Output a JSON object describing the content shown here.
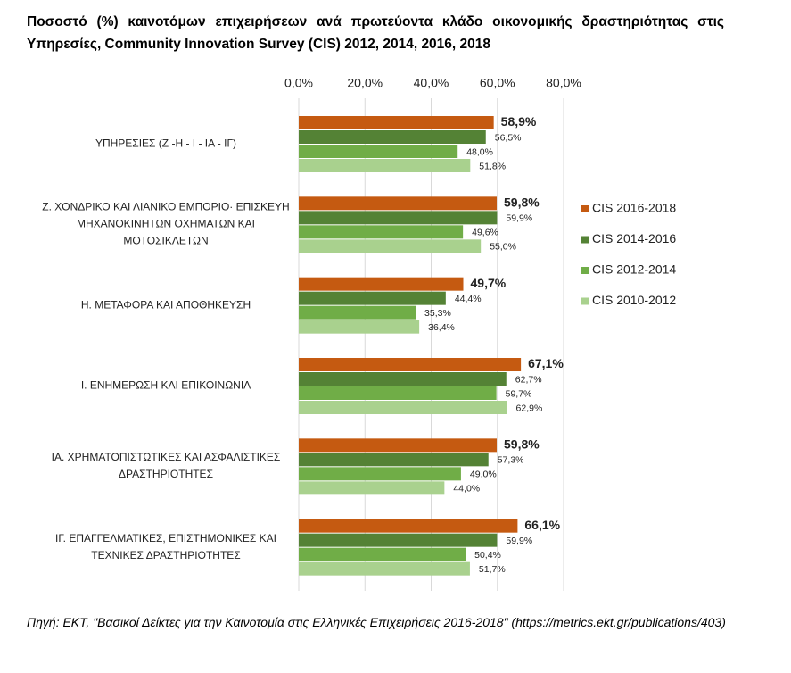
{
  "chart_data": {
    "type": "barh",
    "title": "Ποσοστό (%) καινοτόμων επιχειρήσεων ανά πρωτεύοντα κλάδο οικονομικής δραστηριότητας στις Υπηρεσίες,  Community Innovation Survey (CIS) 2012, 2014, 2016, 2018",
    "categories": [
      "ΥΠΗΡΕΣΙΕΣ (Ζ -Η - Ι - ΙΑ - ΙΓ)",
      "Ζ. ΧΟΝΔΡΙΚΟ ΚΑΙ ΛΙΑΝΙΚΟ ΕΜΠΟΡΙΟ· ΕΠΙΣΚΕΥΗ ΜΗΧΑΝΟΚΙΝΗΤΩΝ ΟΧΗΜΑΤΩΝ ΚΑΙ ΜΟΤΟΣΙΚΛΕΤΩΝ",
      "Η. ΜΕΤΑΦΟΡΑ ΚΑΙ ΑΠΟΘΗΚΕΥΣΗ",
      "Ι. ΕΝΗΜΕΡΩΣΗ ΚΑΙ ΕΠΙΚΟΙΝΩΝΙΑ",
      "ΙΑ. ΧΡΗΜΑΤΟΠΙΣΤΩΤΙΚΕΣ ΚΑΙ ΑΣΦΑΛΙΣΤΙΚΕΣ ΔΡΑΣΤΗΡΙΟΤΗΤΕΣ",
      "ΙΓ. ΕΠΑΓΓΕΛΜΑΤΙΚΕΣ, ΕΠΙΣΤΗΜΟΝΙΚΕΣ ΚΑΙ ΤΕΧΝΙΚΕΣ ΔΡΑΣΤΗΡΙΟΤΗΤΕΣ"
    ],
    "series": [
      {
        "name": "CIS 2016-2018",
        "color": "#c55a11",
        "values": [
          58.9,
          59.8,
          49.7,
          67.1,
          59.8,
          66.1
        ],
        "value_labels": [
          "58,9%",
          "59,8%",
          "49,7%",
          "67,1%",
          "59,8%",
          "66,1%"
        ]
      },
      {
        "name": "CIS 2014-2016",
        "color": "#548235",
        "values": [
          56.5,
          59.9,
          44.4,
          62.7,
          57.3,
          59.9
        ],
        "value_labels": [
          "56,5%",
          "59,9%",
          "44,4%",
          "62,7%",
          "57,3%",
          "59,9%"
        ]
      },
      {
        "name": "CIS 2012-2014",
        "color": "#70ad47",
        "values": [
          48.0,
          49.6,
          35.3,
          59.7,
          49.0,
          50.4
        ],
        "value_labels": [
          "48,0%",
          "49,6%",
          "35,3%",
          "59,7%",
          "49,0%",
          "50,4%"
        ]
      },
      {
        "name": "CIS 2010-2012",
        "color": "#a9d18e",
        "values": [
          51.8,
          55.0,
          36.4,
          62.9,
          44.0,
          51.7
        ],
        "value_labels": [
          "51,8%",
          "55,0%",
          "36,4%",
          "62,9%",
          "44,0%",
          "51,7%"
        ]
      }
    ],
    "xlim": [
      0,
      80
    ],
    "xticks": [
      {
        "value": 0,
        "label": "0,0%"
      },
      {
        "value": 20,
        "label": "20,0%"
      },
      {
        "value": 40,
        "label": "40,0%"
      },
      {
        "value": 60,
        "label": "60,0%"
      },
      {
        "value": 80,
        "label": "80,0%"
      }
    ],
    "grid": true,
    "legend": "right",
    "source": "Πηγή: ΕΚΤ, \"Βασικοί Δείκτες για την Καινοτομία στις Ελληνικές Επιχειρήσεις 2016-2018\" (https://metrics.ekt.gr/publications/403)"
  }
}
